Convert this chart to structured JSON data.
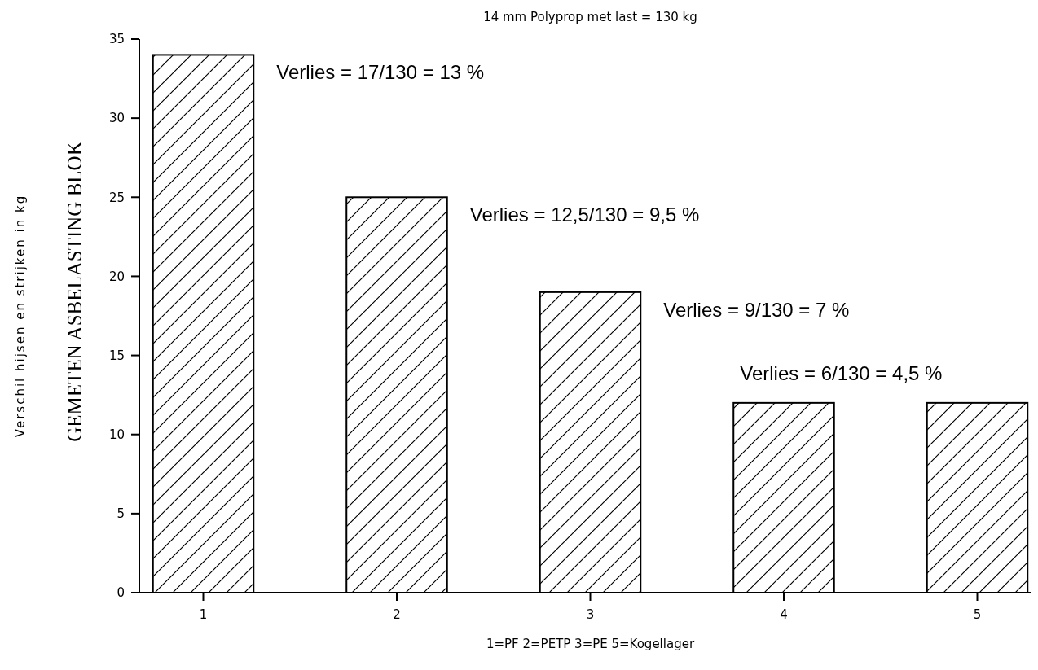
{
  "chart_data": {
    "type": "bar",
    "title": "14 mm Polyprop met last = 130 kg",
    "xlabel": "1=PF 2=PETP 3=PE 5=Kogellager",
    "categories": [
      "1",
      "2",
      "3",
      "4",
      "5"
    ],
    "values": [
      34,
      25,
      19,
      12,
      12
    ],
    "color": "#000000",
    "ylim": [
      0,
      35
    ],
    "yticks": [
      0,
      5,
      10,
      15,
      20,
      25,
      30,
      35
    ],
    "grid": false,
    "annotations": [
      "Verschil hijsen en strijken in kg",
      "GEMETEN ASBELASTING BLOK",
      "Verlies = 17/130 = 13 %",
      "Verlies = 12,5/130 = 9,5 %",
      "Verlies = 9/130 = 7 %",
      "Verlies = 6/130 = 4,5 %"
    ]
  }
}
